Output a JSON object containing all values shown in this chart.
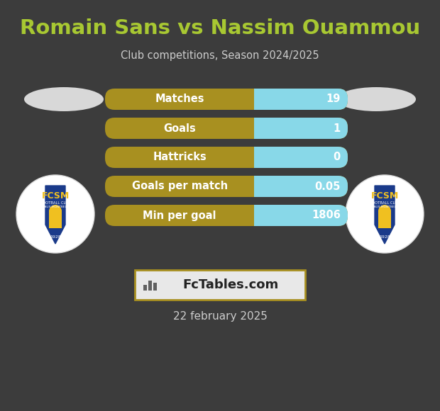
{
  "title": "Romain Sans vs Nassim Ouammou",
  "subtitle": "Club competitions, Season 2024/2025",
  "date": "22 february 2025",
  "background_color": "#3c3c3c",
  "title_color": "#a8c832",
  "subtitle_color": "#cccccc",
  "date_color": "#cccccc",
  "stats": [
    {
      "label": "Matches",
      "value": "19"
    },
    {
      "label": "Goals",
      "value": "1"
    },
    {
      "label": "Hattricks",
      "value": "0"
    },
    {
      "label": "Goals per match",
      "value": "0.05"
    },
    {
      "label": "Min per goal",
      "value": "1806"
    }
  ],
  "bar_label_color": "#ffffff",
  "bar_value_color": "#ffffff",
  "bar_left_color": "#a89020",
  "bar_right_color": "#88d8e8",
  "watermark_text": "FcTables.com",
  "watermark_bg": "#e8e8e8",
  "watermark_border": "#a89020",
  "ellipse_color": "#d8d8d8",
  "logo_left_bg": "#ffffff",
  "logo_right_bg": "#ffffff"
}
